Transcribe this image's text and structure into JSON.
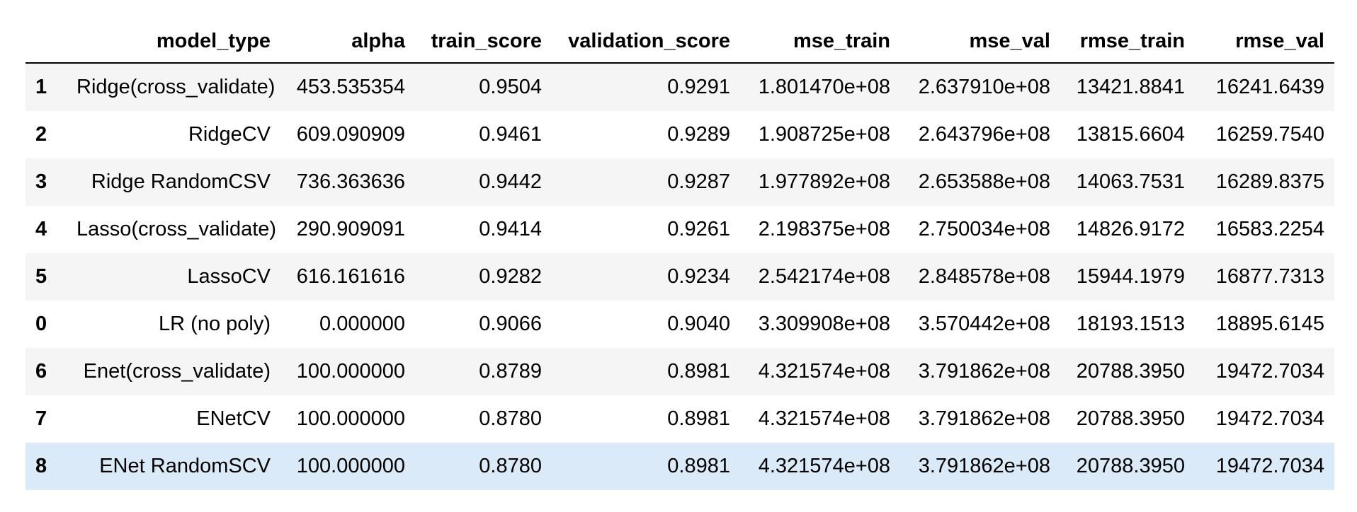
{
  "table": {
    "columns": [
      "",
      "model_type",
      "alpha",
      "train_score",
      "validation_score",
      "mse_train",
      "mse_val",
      "rmse_train",
      "rmse_val"
    ],
    "rows": [
      {
        "index": "1",
        "model_type": "Ridge(cross_validate)",
        "alpha": "453.535354",
        "train_score": "0.9504",
        "validation_score": "0.9291",
        "mse_train": "1.801470e+08",
        "mse_val": "2.637910e+08",
        "rmse_train": "13421.8841",
        "rmse_val": "16241.6439"
      },
      {
        "index": "2",
        "model_type": "RidgeCV",
        "alpha": "609.090909",
        "train_score": "0.9461",
        "validation_score": "0.9289",
        "mse_train": "1.908725e+08",
        "mse_val": "2.643796e+08",
        "rmse_train": "13815.6604",
        "rmse_val": "16259.7540"
      },
      {
        "index": "3",
        "model_type": "Ridge RandomCSV",
        "alpha": "736.363636",
        "train_score": "0.9442",
        "validation_score": "0.9287",
        "mse_train": "1.977892e+08",
        "mse_val": "2.653588e+08",
        "rmse_train": "14063.7531",
        "rmse_val": "16289.8375"
      },
      {
        "index": "4",
        "model_type": "Lasso(cross_validate)",
        "alpha": "290.909091",
        "train_score": "0.9414",
        "validation_score": "0.9261",
        "mse_train": "2.198375e+08",
        "mse_val": "2.750034e+08",
        "rmse_train": "14826.9172",
        "rmse_val": "16583.2254"
      },
      {
        "index": "5",
        "model_type": "LassoCV",
        "alpha": "616.161616",
        "train_score": "0.9282",
        "validation_score": "0.9234",
        "mse_train": "2.542174e+08",
        "mse_val": "2.848578e+08",
        "rmse_train": "15944.1979",
        "rmse_val": "16877.7313"
      },
      {
        "index": "0",
        "model_type": "LR (no poly)",
        "alpha": "0.000000",
        "train_score": "0.9066",
        "validation_score": "0.9040",
        "mse_train": "3.309908e+08",
        "mse_val": "3.570442e+08",
        "rmse_train": "18193.1513",
        "rmse_val": "18895.6145"
      },
      {
        "index": "6",
        "model_type": "Enet(cross_validate)",
        "alpha": "100.000000",
        "train_score": "0.8789",
        "validation_score": "0.8981",
        "mse_train": "4.321574e+08",
        "mse_val": "3.791862e+08",
        "rmse_train": "20788.3950",
        "rmse_val": "19472.7034"
      },
      {
        "index": "7",
        "model_type": "ENetCV",
        "alpha": "100.000000",
        "train_score": "0.8780",
        "validation_score": "0.8981",
        "mse_train": "4.321574e+08",
        "mse_val": "3.791862e+08",
        "rmse_train": "20788.3950",
        "rmse_val": "19472.7034"
      },
      {
        "index": "8",
        "model_type": "ENet RandomSCV",
        "alpha": "100.000000",
        "train_score": "0.8780",
        "validation_score": "0.8981",
        "mse_train": "4.321574e+08",
        "mse_val": "3.791862e+08",
        "rmse_train": "20788.3950",
        "rmse_val": "19472.7034"
      }
    ],
    "hovered_row": 8
  },
  "colors": {
    "stripe": "#f5f5f5",
    "hover": "#dbeaf8",
    "header_rule": "#000000"
  }
}
